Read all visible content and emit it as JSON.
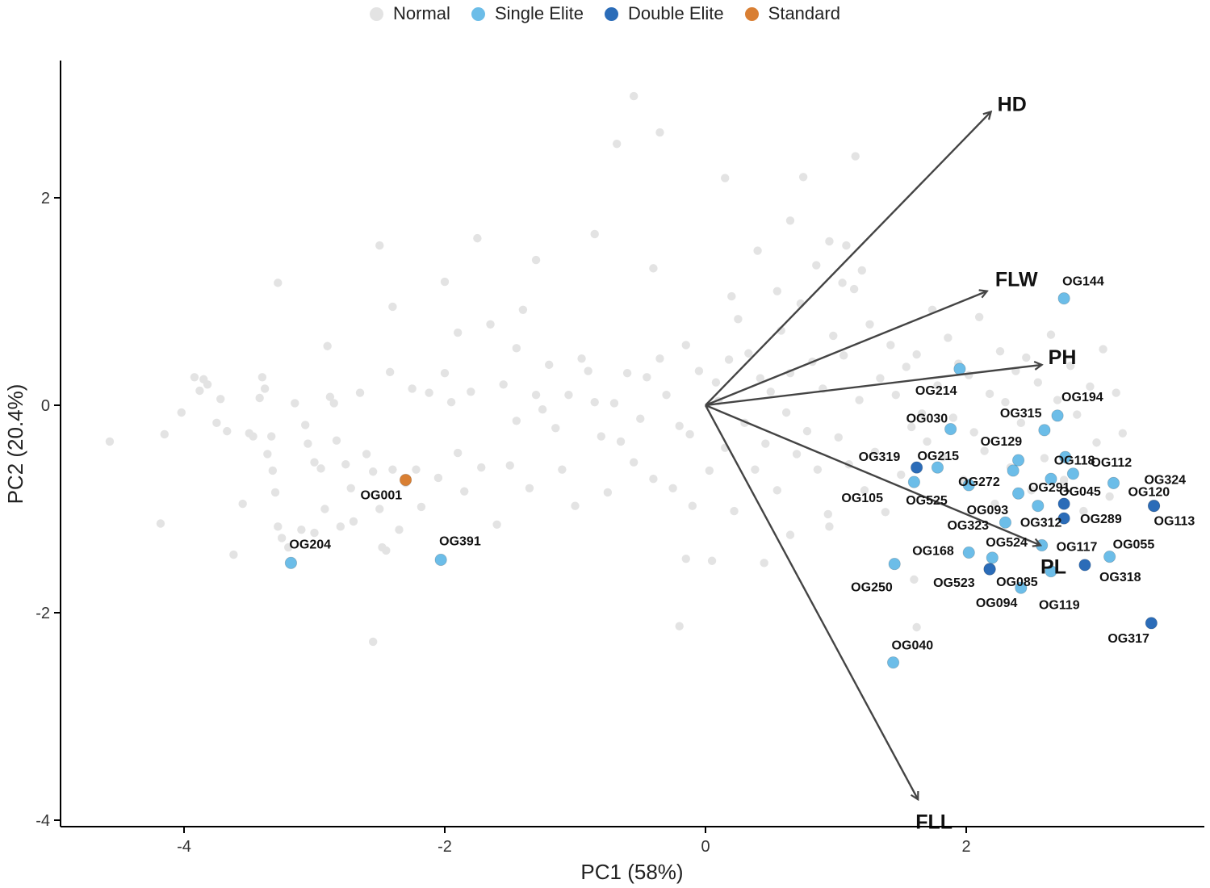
{
  "chart_data": {
    "type": "scatter",
    "xlabel": "PC1 (58%)",
    "ylabel": "PC2 (20.4%)",
    "xlim": [
      -4.95,
      3.75
    ],
    "ylim": [
      -4.08,
      3.3
    ],
    "xticks": [
      -4,
      -2,
      0,
      2
    ],
    "yticks": [
      -4,
      -2,
      0,
      2
    ],
    "grid": false,
    "legend_position": "top",
    "legend": [
      {
        "name": "Normal",
        "color": "#e3e3e3"
      },
      {
        "name": "Single Elite",
        "color": "#6cbde8"
      },
      {
        "name": "Double Elite",
        "color": "#2b6cb8"
      },
      {
        "name": "Standard",
        "color": "#d97f33"
      }
    ],
    "series": [
      {
        "name": "Normal",
        "color": "#e3e3e3",
        "points": [
          [
            -4.57,
            -0.35
          ],
          [
            -4.15,
            -0.28
          ],
          [
            -4.18,
            -1.14
          ],
          [
            -4.02,
            -0.07
          ],
          [
            -3.92,
            0.27
          ],
          [
            -3.88,
            0.14
          ],
          [
            -3.82,
            0.2
          ],
          [
            -3.75,
            -0.17
          ],
          [
            -3.72,
            0.06
          ],
          [
            -3.67,
            -0.25
          ],
          [
            -3.62,
            -1.44
          ],
          [
            -3.5,
            -0.27
          ],
          [
            -3.47,
            -0.3
          ],
          [
            -3.42,
            0.07
          ],
          [
            -3.4,
            0.27
          ],
          [
            -3.38,
            0.16
          ],
          [
            -3.36,
            -0.47
          ],
          [
            -3.33,
            -0.3
          ],
          [
            -3.32,
            -0.63
          ],
          [
            -3.3,
            -0.84
          ],
          [
            -3.28,
            -1.17
          ],
          [
            -3.25,
            -1.28
          ],
          [
            -3.2,
            -1.37
          ],
          [
            -3.15,
            0.02
          ],
          [
            -3.1,
            -1.2
          ],
          [
            -3.07,
            -0.19
          ],
          [
            -3.05,
            -0.37
          ],
          [
            -3.0,
            -0.55
          ],
          [
            -2.95,
            -0.61
          ],
          [
            -2.92,
            -1.0
          ],
          [
            -2.88,
            0.08
          ],
          [
            -2.85,
            0.02
          ],
          [
            -2.83,
            -0.34
          ],
          [
            -2.8,
            -1.17
          ],
          [
            -2.76,
            -0.57
          ],
          [
            -2.72,
            -0.8
          ],
          [
            -2.7,
            -1.12
          ],
          [
            -2.65,
            0.12
          ],
          [
            -2.6,
            -0.47
          ],
          [
            -2.55,
            -0.64
          ],
          [
            -2.5,
            -1.0
          ],
          [
            -2.48,
            -1.37
          ],
          [
            -2.45,
            -1.4
          ],
          [
            -2.42,
            0.32
          ],
          [
            -2.4,
            -0.62
          ],
          [
            -2.35,
            -1.2
          ],
          [
            -2.3,
            -0.75
          ],
          [
            -2.25,
            0.16
          ],
          [
            -2.22,
            -0.62
          ],
          [
            -2.18,
            -0.98
          ],
          [
            -2.12,
            0.12
          ],
          [
            -2.05,
            -0.7
          ],
          [
            -2.0,
            0.31
          ],
          [
            -1.95,
            0.03
          ],
          [
            -1.9,
            -0.46
          ],
          [
            -1.85,
            -0.83
          ],
          [
            -1.8,
            0.13
          ],
          [
            -1.72,
            -0.6
          ],
          [
            -1.65,
            0.78
          ],
          [
            -1.6,
            -1.15
          ],
          [
            -1.55,
            0.2
          ],
          [
            -1.5,
            -0.58
          ],
          [
            -1.45,
            -0.15
          ],
          [
            -1.4,
            0.92
          ],
          [
            -1.35,
            -0.8
          ],
          [
            -1.3,
            0.1
          ],
          [
            -1.25,
            -0.04
          ],
          [
            -1.2,
            0.39
          ],
          [
            -1.15,
            -0.22
          ],
          [
            -1.1,
            -0.62
          ],
          [
            -1.05,
            0.1
          ],
          [
            -1.0,
            -0.97
          ],
          [
            -0.95,
            0.45
          ],
          [
            -0.9,
            0.33
          ],
          [
            -0.85,
            0.03
          ],
          [
            -0.8,
            -0.3
          ],
          [
            -0.75,
            -0.84
          ],
          [
            -0.7,
            0.02
          ],
          [
            -0.65,
            -0.35
          ],
          [
            -0.6,
            0.31
          ],
          [
            -0.55,
            -0.55
          ],
          [
            -0.5,
            -0.13
          ],
          [
            -0.45,
            0.27
          ],
          [
            -0.4,
            -0.71
          ],
          [
            -0.35,
            0.45
          ],
          [
            -0.3,
            0.1
          ],
          [
            -0.25,
            -0.8
          ],
          [
            -0.2,
            -0.2
          ],
          [
            -0.15,
            0.58
          ],
          [
            -0.12,
            -0.28
          ],
          [
            -0.1,
            -0.97
          ],
          [
            -0.05,
            0.33
          ],
          [
            0.03,
            -0.63
          ],
          [
            0.08,
            0.22
          ],
          [
            0.1,
            0.04
          ],
          [
            0.15,
            -0.41
          ],
          [
            0.18,
            0.44
          ],
          [
            0.22,
            -1.02
          ],
          [
            0.25,
            0.83
          ],
          [
            0.3,
            -0.17
          ],
          [
            0.33,
            0.5
          ],
          [
            0.38,
            -0.62
          ],
          [
            0.42,
            0.26
          ],
          [
            0.46,
            -0.37
          ],
          [
            0.5,
            0.13
          ],
          [
            0.55,
            -0.82
          ],
          [
            0.58,
            0.72
          ],
          [
            0.62,
            -0.07
          ],
          [
            0.65,
            0.31
          ],
          [
            0.7,
            -0.47
          ],
          [
            0.73,
            0.98
          ],
          [
            0.78,
            -0.25
          ],
          [
            0.82,
            0.42
          ],
          [
            0.86,
            -0.62
          ],
          [
            0.9,
            0.16
          ],
          [
            0.94,
            -1.05
          ],
          [
            0.98,
            0.67
          ],
          [
            1.02,
            -0.31
          ],
          [
            1.06,
            0.48
          ],
          [
            1.1,
            -0.57
          ],
          [
            1.14,
            1.12
          ],
          [
            1.18,
            0.05
          ],
          [
            1.22,
            -0.82
          ],
          [
            1.26,
            0.78
          ],
          [
            1.3,
            -0.45
          ],
          [
            1.34,
            0.26
          ],
          [
            1.38,
            -1.03
          ],
          [
            1.42,
            0.58
          ],
          [
            1.46,
            0.1
          ],
          [
            1.5,
            -0.67
          ],
          [
            1.54,
            0.37
          ],
          [
            1.58,
            -0.21
          ],
          [
            1.62,
            0.49
          ],
          [
            1.66,
            -0.08
          ],
          [
            1.7,
            -0.35
          ],
          [
            1.74,
            0.92
          ],
          [
            1.78,
            0.19
          ],
          [
            1.82,
            -0.5
          ],
          [
            1.86,
            0.65
          ],
          [
            1.9,
            -0.12
          ],
          [
            1.94,
            0.4
          ],
          [
            1.98,
            -0.72
          ],
          [
            2.02,
            0.29
          ],
          [
            2.06,
            -0.26
          ],
          [
            2.1,
            0.85
          ],
          [
            2.14,
            -0.44
          ],
          [
            2.18,
            0.11
          ],
          [
            2.22,
            -0.95
          ],
          [
            2.26,
            0.52
          ],
          [
            2.3,
            0.03
          ],
          [
            2.34,
            -0.6
          ],
          [
            2.38,
            0.33
          ],
          [
            2.42,
            -0.17
          ],
          [
            2.46,
            0.46
          ],
          [
            2.5,
            -0.82
          ],
          [
            2.55,
            0.22
          ],
          [
            2.6,
            -0.51
          ],
          [
            2.65,
            0.68
          ],
          [
            2.7,
            0.05
          ],
          [
            2.75,
            -0.72
          ],
          [
            2.8,
            0.38
          ],
          [
            2.85,
            -0.09
          ],
          [
            2.9,
            -1.02
          ],
          [
            2.95,
            0.18
          ],
          [
            3.0,
            -0.36
          ],
          [
            3.05,
            0.54
          ],
          [
            3.1,
            -0.88
          ],
          [
            3.15,
            0.12
          ],
          [
            3.2,
            -0.27
          ],
          [
            1.6,
            -1.68
          ],
          [
            1.62,
            -2.14
          ],
          [
            -0.2,
            -2.13
          ],
          [
            -2.55,
            -2.28
          ],
          [
            -2.5,
            1.54
          ],
          [
            -2.0,
            1.19
          ],
          [
            -1.75,
            1.61
          ],
          [
            -0.55,
            2.98
          ],
          [
            -0.68,
            2.52
          ],
          [
            -0.35,
            2.63
          ],
          [
            0.15,
            2.19
          ],
          [
            0.75,
            2.2
          ],
          [
            1.08,
            1.54
          ],
          [
            1.15,
            2.4
          ],
          [
            0.4,
            1.49
          ],
          [
            0.65,
            1.78
          ],
          [
            -3.28,
            1.18
          ],
          [
            -2.9,
            0.57
          ],
          [
            -2.4,
            0.95
          ],
          [
            -1.9,
            0.7
          ],
          [
            -1.3,
            1.4
          ],
          [
            -0.85,
            1.65
          ],
          [
            -0.4,
            1.32
          ],
          [
            0.2,
            1.05
          ],
          [
            0.55,
            1.1
          ],
          [
            0.95,
            1.58
          ],
          [
            1.05,
            1.18
          ],
          [
            0.85,
            1.35
          ],
          [
            1.2,
            1.3
          ],
          [
            -3.85,
            0.25
          ],
          [
            -3.55,
            -0.95
          ],
          [
            -3.0,
            -1.23
          ],
          [
            -1.45,
            0.55
          ],
          [
            -0.15,
            -1.48
          ],
          [
            0.05,
            -1.5
          ],
          [
            0.45,
            -1.52
          ],
          [
            0.65,
            -1.25
          ],
          [
            0.95,
            -1.17
          ]
        ]
      },
      {
        "name": "Single Elite",
        "color": "#6cbde8",
        "points": [
          {
            "label": "OG204",
            "x": -3.18,
            "y": -1.52
          },
          {
            "label": "OG391",
            "x": -2.03,
            "y": -1.49
          },
          {
            "label": "OG144",
            "x": 2.75,
            "y": 1.03
          },
          {
            "label": "OG214",
            "x": 1.95,
            "y": 0.35
          },
          {
            "label": "OG194",
            "x": 2.7,
            "y": -0.1
          },
          {
            "label": "OG030",
            "x": 1.88,
            "y": -0.23
          },
          {
            "label": "OG315",
            "x": 2.6,
            "y": -0.24
          },
          {
            "label": "OG215",
            "x": 1.78,
            "y": -0.6
          },
          {
            "label": "OG129",
            "x": 2.4,
            "y": -0.53
          },
          {
            "label": "OG118",
            "x": 2.76,
            "y": -0.5
          },
          {
            "label": "OG272",
            "x": 2.36,
            "y": -0.63
          },
          {
            "label": "OG291",
            "x": 2.65,
            "y": -0.71
          },
          {
            "label": "OG112",
            "x": 2.82,
            "y": -0.66
          },
          {
            "label": "OG324",
            "x": 3.13,
            "y": -0.75
          },
          {
            "label": "OG105",
            "x": 1.6,
            "y": -0.74
          },
          {
            "label": "OG525",
            "x": 2.02,
            "y": -0.77
          },
          {
            "label": "OG093",
            "x": 2.4,
            "y": -0.85
          },
          {
            "label": "OG312",
            "x": 2.55,
            "y": -0.97
          },
          {
            "label": "OG323",
            "x": 2.3,
            "y": -1.13
          },
          {
            "label": "OG117",
            "x": 2.58,
            "y": -1.35
          },
          {
            "label": "OG055",
            "x": 3.1,
            "y": -1.46
          },
          {
            "label": "OG168",
            "x": 2.02,
            "y": -1.42
          },
          {
            "label": "OG524",
            "x": 2.2,
            "y": -1.47
          },
          {
            "label": "OG250",
            "x": 1.45,
            "y": -1.53
          },
          {
            "label": "OG119",
            "x": 2.65,
            "y": -1.6
          },
          {
            "label": "OG094",
            "x": 2.42,
            "y": -1.76
          },
          {
            "label": "OG040",
            "x": 1.44,
            "y": -2.48
          }
        ]
      },
      {
        "name": "Double Elite",
        "color": "#2b6cb8",
        "points": [
          {
            "label": "OG319",
            "x": 1.62,
            "y": -0.6
          },
          {
            "label": "OG045",
            "x": 2.75,
            "y": -0.95
          },
          {
            "label": "OG289",
            "x": 2.75,
            "y": -1.09
          },
          {
            "label": "OG120",
            "x": 3.44,
            "y": -0.97
          },
          {
            "label": "OG113",
            "x": 3.44,
            "y": -0.97
          },
          {
            "label": "OG318",
            "x": 2.91,
            "y": -1.54
          },
          {
            "label": "OG085",
            "x": 2.18,
            "y": -1.58
          },
          {
            "label": "OG523",
            "x": 2.18,
            "y": -1.58
          },
          {
            "label": "OG317",
            "x": 3.42,
            "y": -2.1
          }
        ]
      },
      {
        "name": "Standard",
        "color": "#d97f33",
        "points": [
          {
            "label": "OG001",
            "x": -2.3,
            "y": -0.72
          }
        ]
      }
    ],
    "loadings": [
      {
        "name": "HD",
        "x": 2.19,
        "y": 2.83
      },
      {
        "name": "FLW",
        "x": 2.16,
        "y": 1.1
      },
      {
        "name": "PH",
        "x": 2.58,
        "y": 0.39
      },
      {
        "name": "PL",
        "x": 2.57,
        "y": -1.35
      },
      {
        "name": "FLL",
        "x": 1.63,
        "y": -3.8
      }
    ]
  }
}
